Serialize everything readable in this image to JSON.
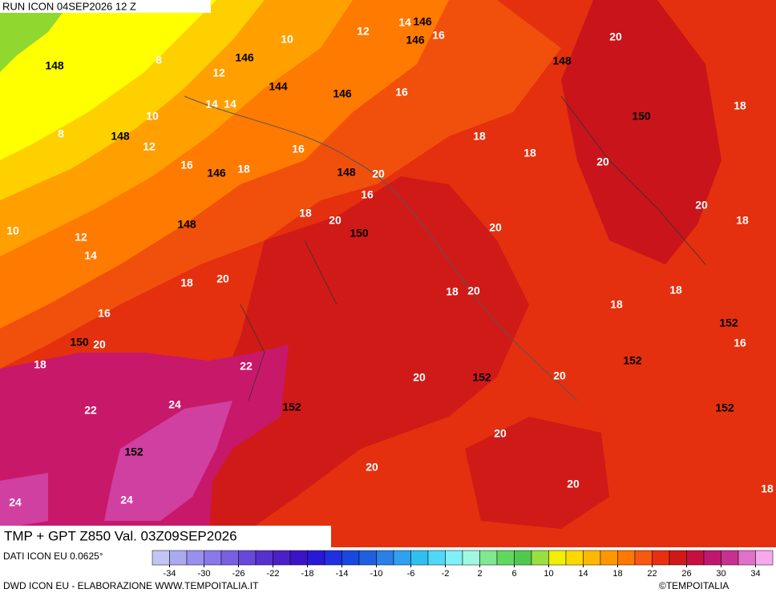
{
  "header": {
    "run": "RUN ICON 04SEP2026 12 Z"
  },
  "title": "TMP + GPT Z850 Val. 03Z09SEP2026",
  "data_source": "DATI ICON EU 0.0625°",
  "footer": "DWD ICON EU - ELABORAZIONE WWW.TEMPOITALIA.IT",
  "credit": "©TEMPOITALIA",
  "legend": {
    "ticks": [
      -34,
      -30,
      -26,
      -22,
      -18,
      -14,
      -10,
      -6,
      -2,
      2,
      6,
      10,
      14,
      18,
      22,
      26,
      30,
      34
    ],
    "colors": [
      "#c4c4f4",
      "#aaaaf0",
      "#9890ec",
      "#8878e8",
      "#7860e0",
      "#6848d8",
      "#5830d0",
      "#4c20c8",
      "#3c14c8",
      "#2a18d8",
      "#2030e0",
      "#1848e0",
      "#2060e0",
      "#2880e8",
      "#30a0f0",
      "#30c0f0",
      "#50d8f8",
      "#80f0f8",
      "#a0f8e0",
      "#80e890",
      "#60d860",
      "#50c850",
      "#98e040",
      "#f0f000",
      "#ffd800",
      "#ffb800",
      "#ff9800",
      "#ff7800",
      "#f85810",
      "#e83010",
      "#d01818",
      "#c81040",
      "#c01870",
      "#c83090",
      "#e070c8",
      "#f8a8ec"
    ]
  },
  "temperature_labels": [
    "14",
    "10",
    "12",
    "16",
    "20",
    "8",
    "12",
    "14",
    "14",
    "16",
    "18",
    "10",
    "12",
    "16",
    "18",
    "18",
    "20",
    "8",
    "16",
    "18",
    "20",
    "16",
    "20",
    "18",
    "18",
    "20",
    "20",
    "10",
    "12",
    "14",
    "18",
    "20",
    "18",
    "20",
    "18",
    "18",
    "16",
    "20",
    "16",
    "18",
    "22",
    "20",
    "20",
    "24",
    "22",
    "20",
    "20",
    "20",
    "18",
    "24",
    "24"
  ],
  "geopotential_labels": [
    "146",
    "146",
    "148",
    "146",
    "148",
    "144",
    "146",
    "150",
    "148",
    "146",
    "148",
    "148",
    "150",
    "150",
    "152",
    "152",
    "152",
    "152",
    "152",
    "152"
  ]
}
